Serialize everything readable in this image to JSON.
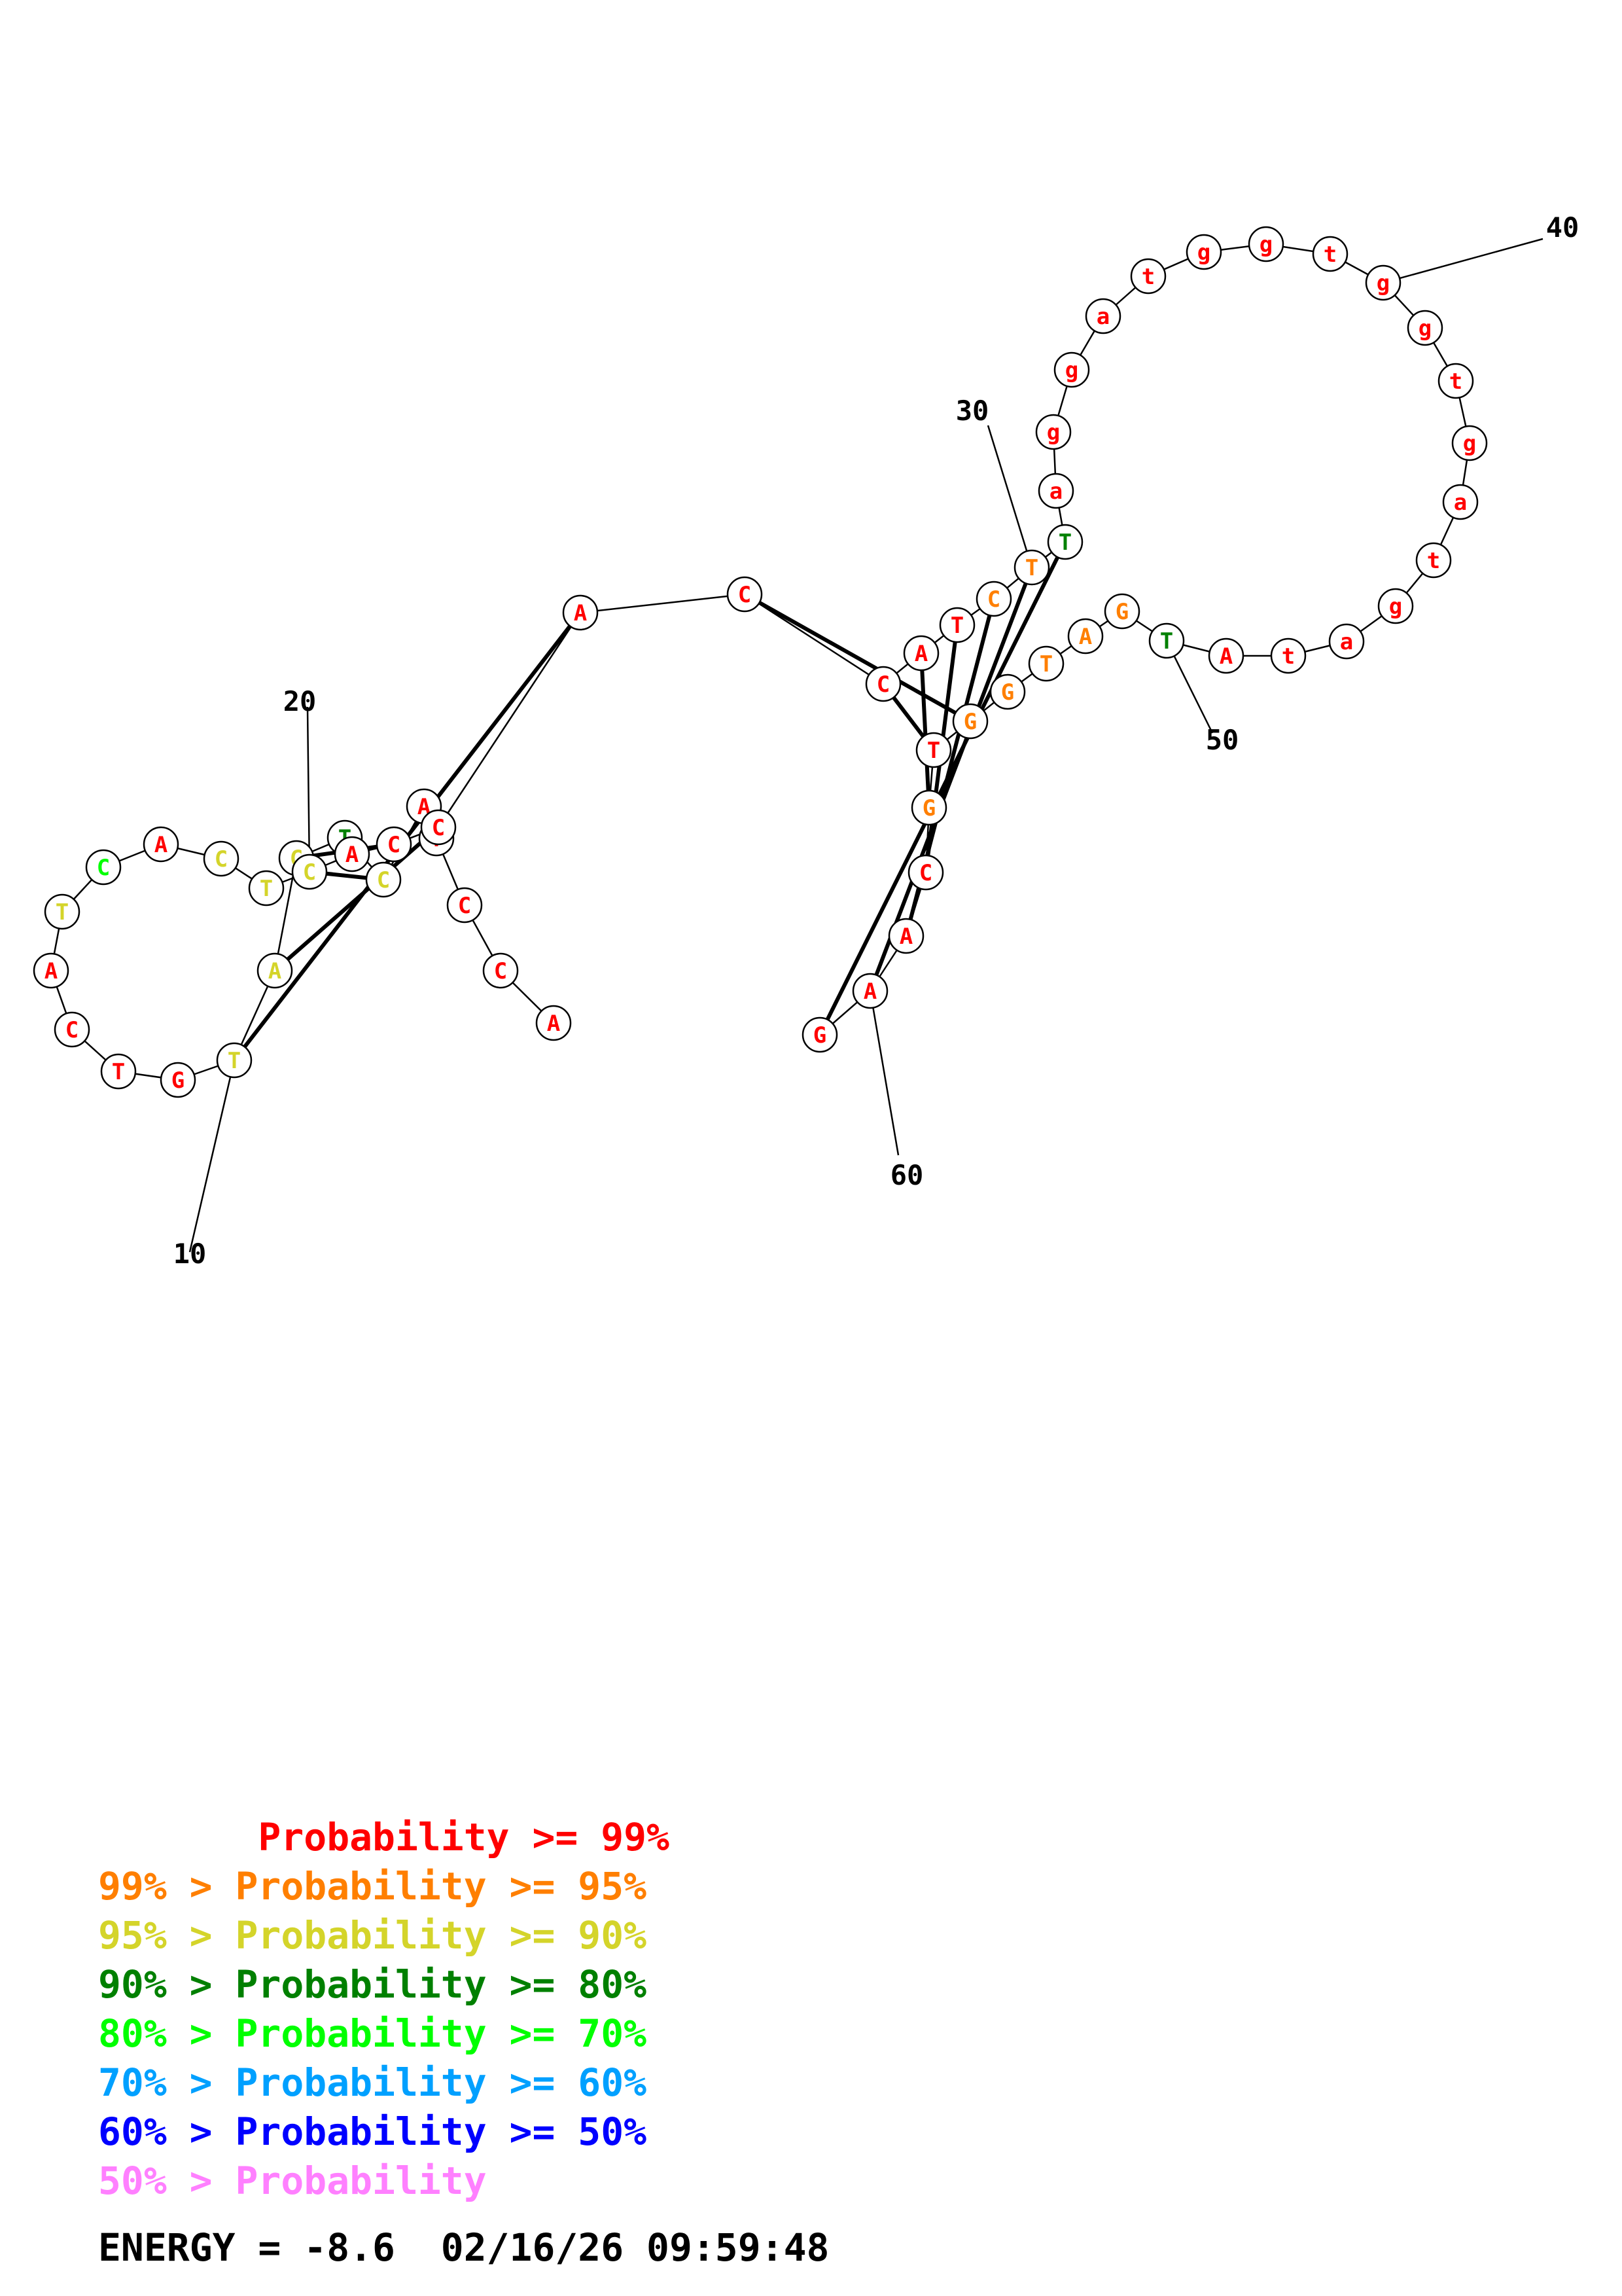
{
  "structure": {
    "sequence": [
      "A",
      "C",
      "C",
      "T",
      "A",
      "C",
      "T",
      "C",
      "A",
      "T",
      "G",
      "T",
      "C",
      "A",
      "T",
      "C",
      "A",
      "C",
      "T",
      "C",
      "A",
      "C",
      "C",
      "A",
      "C",
      "C",
      "A",
      "T",
      "C",
      "T",
      "T",
      "a",
      "g",
      "g",
      "a",
      "t",
      "g",
      "g",
      "t",
      "g",
      "g",
      "t",
      "g",
      "a",
      "t",
      "g",
      "a",
      "t",
      "A",
      "T",
      "G",
      "A",
      "T",
      "G",
      "G",
      "T",
      "G",
      "C",
      "A",
      "A",
      "G"
    ],
    "confidence": [
      "99",
      "99",
      "99",
      "99",
      "99",
      "90",
      "80",
      "90",
      "90",
      "90",
      "99",
      "99",
      "99",
      "99",
      "90",
      "70",
      "99",
      "90",
      "90",
      "90",
      "99",
      "99",
      "99",
      "99",
      "99",
      "99",
      "99",
      "99",
      "95",
      "95",
      "80",
      "99",
      "99",
      "99",
      "99",
      "99",
      "99",
      "99",
      "99",
      "99",
      "99",
      "99",
      "99",
      "99",
      "99",
      "99",
      "99",
      "99",
      "99",
      "80",
      "95",
      "95",
      "95",
      "95",
      "95",
      "99",
      "95",
      "99",
      "99",
      "99",
      "99"
    ],
    "pairs": [
      [
        6,
        20
      ],
      [
        7,
        21
      ],
      [
        8,
        22
      ],
      [
        9,
        23
      ],
      [
        10,
        24
      ],
      [
        25,
        55
      ],
      [
        26,
        56
      ],
      [
        27,
        57
      ],
      [
        28,
        58
      ],
      [
        29,
        59
      ],
      [
        30,
        60
      ],
      [
        31,
        61
      ]
    ],
    "position_labels": [
      "10",
      "20",
      "30",
      "40",
      "50",
      "60"
    ]
  },
  "colors": {
    "99": "#ff0000",
    "95": "#ff7f00",
    "90": "#d4d42a",
    "80": "#008000",
    "70": "#00ff00",
    "60": "#00a0ff",
    "50": "#0000ff",
    "lt50": "#ff80ff"
  },
  "legend": [
    {
      "text": "       Probability >= 99%",
      "color": "#ff0000"
    },
    {
      "text": "99% > Probability >= 95%",
      "color": "#ff7f00"
    },
    {
      "text": "95% > Probability >= 90%",
      "color": "#d4d42a"
    },
    {
      "text": "90% > Probability >= 80%",
      "color": "#008000"
    },
    {
      "text": "80% > Probability >= 70%",
      "color": "#00ff00"
    },
    {
      "text": "70% > Probability >= 60%",
      "color": "#00a0ff"
    },
    {
      "text": "60% > Probability >= 50%",
      "color": "#0000ff"
    },
    {
      "text": "50% > Probability",
      "color": "#ff80ff"
    }
  ],
  "energy": "ENERGY = -8.6  02/16/26 09:59:48"
}
